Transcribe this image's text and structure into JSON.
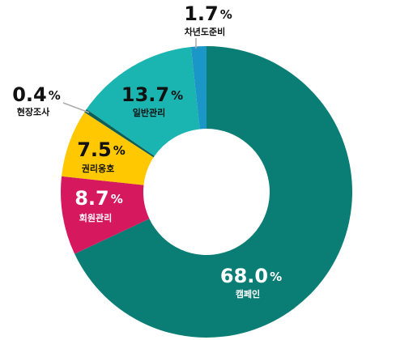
{
  "chart_data": {
    "type": "donut",
    "categories": [
      "캠페인",
      "회원관리",
      "권리옹호",
      "현장조사",
      "일반관리",
      "차년도준비"
    ],
    "values": [
      68.0,
      8.7,
      7.5,
      0.4,
      13.7,
      1.7
    ],
    "value_labels": [
      "68.0",
      "8.7",
      "7.5",
      "0.4",
      "13.7",
      "1.7"
    ],
    "unit": "%",
    "colors": [
      "#0a7d74",
      "#d6195f",
      "#ffc800",
      "#0b5f58",
      "#1ab5b0",
      "#1a97c7"
    ]
  }
}
